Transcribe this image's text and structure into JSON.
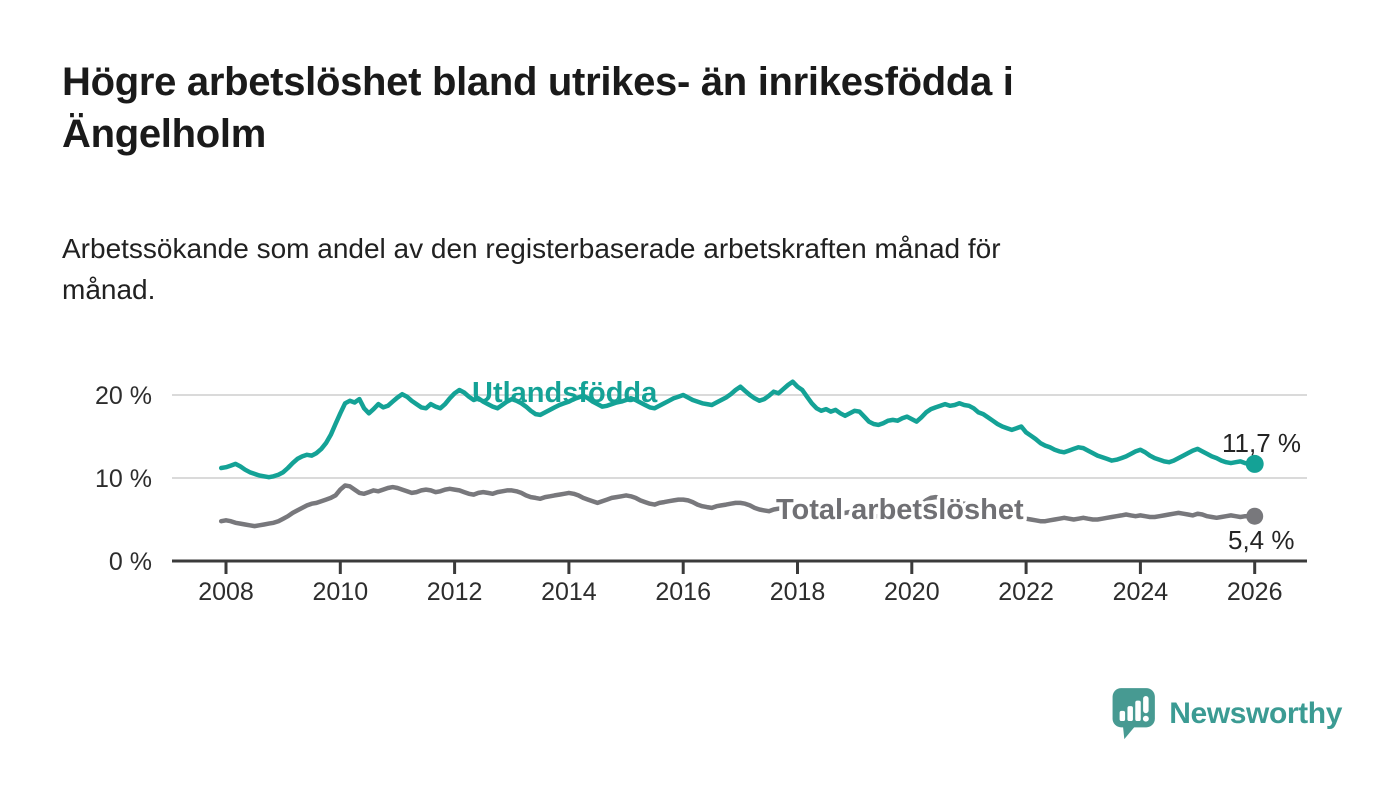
{
  "header": {
    "title_lines": [
      "Högre arbetslöshet bland utrikes- än inrikesfödda i",
      "Ängelholm"
    ],
    "subtitle_lines": [
      "Arbetssökande som andel av den registerbaserade arbetskraften månad för",
      "månad."
    ]
  },
  "chart_data": {
    "type": "line",
    "title": "Högre arbetslöshet bland utrikes- än inrikesfödda i Ängelholm",
    "subtitle": "Arbetssökande som andel av den registerbaserade arbetskraften månad för månad.",
    "x_unit": "year, monthly data points",
    "y_unit": "percent",
    "ylim": [
      0,
      22.5
    ],
    "xlim": [
      2007.9,
      2026.9
    ],
    "grid": "horizontal-only",
    "legend_position": "inline-labels-on-lines",
    "x_ticks": [
      2008,
      2010,
      2012,
      2014,
      2016,
      2018,
      2020,
      2022,
      2024,
      2026
    ],
    "y_ticks": [
      {
        "value": 0,
        "label": "0 %"
      },
      {
        "value": 10,
        "label": "10 %"
      },
      {
        "value": 20,
        "label": "20 %"
      }
    ],
    "series": [
      {
        "name": "Utlandsfödda",
        "color": "#14a296",
        "x_start": 2007.9167,
        "step_months": 1,
        "end_value": 11.7,
        "end_label": "11,7 %",
        "values": [
          11.2,
          11.3,
          11.5,
          11.7,
          11.4,
          11.0,
          10.7,
          10.5,
          10.3,
          10.2,
          10.1,
          10.2,
          10.4,
          10.7,
          11.2,
          11.8,
          12.3,
          12.6,
          12.8,
          12.7,
          13.0,
          13.5,
          14.2,
          15.2,
          16.5,
          17.8,
          19.0,
          19.3,
          19.1,
          19.5,
          18.4,
          17.8,
          18.3,
          18.9,
          18.5,
          18.7,
          19.2,
          19.7,
          20.1,
          19.8,
          19.3,
          18.9,
          18.5,
          18.4,
          18.9,
          18.6,
          18.4,
          18.9,
          19.6,
          20.2,
          20.6,
          20.3,
          19.8,
          19.4,
          19.6,
          19.2,
          18.9,
          18.6,
          18.4,
          18.8,
          19.2,
          19.5,
          19.3,
          19.0,
          18.6,
          18.1,
          17.7,
          17.6,
          17.9,
          18.2,
          18.5,
          18.8,
          19.0,
          19.2,
          19.5,
          19.7,
          19.9,
          19.6,
          19.2,
          18.9,
          18.6,
          18.7,
          18.9,
          19.1,
          19.2,
          19.4,
          19.6,
          19.4,
          19.1,
          18.8,
          18.5,
          18.4,
          18.7,
          19.0,
          19.3,
          19.6,
          19.8,
          20.0,
          19.7,
          19.4,
          19.2,
          19.0,
          18.9,
          18.8,
          19.1,
          19.4,
          19.7,
          20.1,
          20.6,
          21.0,
          20.5,
          20.0,
          19.6,
          19.3,
          19.5,
          19.9,
          20.4,
          20.2,
          20.7,
          21.2,
          21.6,
          21.0,
          20.6,
          19.8,
          19.0,
          18.4,
          18.1,
          18.3,
          18.0,
          18.2,
          17.8,
          17.5,
          17.8,
          18.1,
          18.0,
          17.4,
          16.8,
          16.5,
          16.4,
          16.6,
          16.9,
          17.0,
          16.9,
          17.2,
          17.4,
          17.1,
          16.8,
          17.3,
          17.9,
          18.3,
          18.5,
          18.7,
          18.9,
          18.7,
          18.8,
          19.0,
          18.8,
          18.7,
          18.4,
          17.9,
          17.7,
          17.3,
          16.9,
          16.5,
          16.2,
          16.0,
          15.8,
          16.0,
          16.2,
          15.5,
          15.1,
          14.7,
          14.2,
          13.9,
          13.7,
          13.4,
          13.2,
          13.1,
          13.3,
          13.5,
          13.7,
          13.6,
          13.3,
          13.0,
          12.7,
          12.5,
          12.3,
          12.1,
          12.2,
          12.4,
          12.6,
          12.9,
          13.2,
          13.4,
          13.1,
          12.7,
          12.4,
          12.2,
          12.0,
          11.9,
          12.1,
          12.4,
          12.7,
          13.0,
          13.3,
          13.5,
          13.2,
          12.9,
          12.6,
          12.4,
          12.1,
          11.9,
          11.8,
          11.9,
          12.0,
          11.8,
          11.7,
          11.7
        ]
      },
      {
        "name": "Total arbetslöshet",
        "color": "#78787c",
        "x_start": 2007.9167,
        "step_months": 1,
        "end_value": 5.4,
        "end_label": "5,4 %",
        "values": [
          4.8,
          4.9,
          4.8,
          4.6,
          4.5,
          4.4,
          4.3,
          4.2,
          4.3,
          4.4,
          4.5,
          4.6,
          4.8,
          5.1,
          5.4,
          5.8,
          6.1,
          6.4,
          6.7,
          6.9,
          7.0,
          7.2,
          7.4,
          7.6,
          7.9,
          8.6,
          9.1,
          9.0,
          8.6,
          8.2,
          8.1,
          8.3,
          8.5,
          8.4,
          8.6,
          8.8,
          8.9,
          8.8,
          8.6,
          8.4,
          8.2,
          8.3,
          8.5,
          8.6,
          8.5,
          8.3,
          8.4,
          8.6,
          8.7,
          8.6,
          8.5,
          8.3,
          8.1,
          8.0,
          8.2,
          8.3,
          8.2,
          8.1,
          8.3,
          8.4,
          8.5,
          8.5,
          8.4,
          8.2,
          7.9,
          7.7,
          7.6,
          7.5,
          7.7,
          7.8,
          7.9,
          8.0,
          8.1,
          8.2,
          8.1,
          7.9,
          7.6,
          7.4,
          7.2,
          7.0,
          7.2,
          7.4,
          7.6,
          7.7,
          7.8,
          7.9,
          7.8,
          7.6,
          7.3,
          7.1,
          6.9,
          6.8,
          7.0,
          7.1,
          7.2,
          7.3,
          7.4,
          7.4,
          7.3,
          7.1,
          6.8,
          6.6,
          6.5,
          6.4,
          6.6,
          6.7,
          6.8,
          6.9,
          7.0,
          7.0,
          6.9,
          6.7,
          6.4,
          6.2,
          6.1,
          6.0,
          6.2,
          6.3,
          6.4,
          6.4,
          6.5,
          6.5,
          6.4,
          6.2,
          5.9,
          5.7,
          5.6,
          5.5,
          5.6,
          5.7,
          5.7,
          5.8,
          5.9,
          5.9,
          5.8,
          5.7,
          5.5,
          5.4,
          5.4,
          5.5,
          5.6,
          5.7,
          5.8,
          5.9,
          6.0,
          6.1,
          6.2,
          6.8,
          7.3,
          7.6,
          7.7,
          7.6,
          7.5,
          7.3,
          7.2,
          7.0,
          6.9,
          6.8,
          6.7,
          6.5,
          6.3,
          6.1,
          5.9,
          5.7,
          5.6,
          5.4,
          5.3,
          5.2,
          5.2,
          5.1,
          5.0,
          4.9,
          4.8,
          4.8,
          4.9,
          5.0,
          5.1,
          5.2,
          5.1,
          5.0,
          5.1,
          5.2,
          5.1,
          5.0,
          5.0,
          5.1,
          5.2,
          5.3,
          5.4,
          5.5,
          5.6,
          5.5,
          5.4,
          5.5,
          5.4,
          5.3,
          5.3,
          5.4,
          5.5,
          5.6,
          5.7,
          5.8,
          5.7,
          5.6,
          5.5,
          5.7,
          5.6,
          5.4,
          5.3,
          5.2,
          5.3,
          5.4,
          5.5,
          5.4,
          5.3,
          5.4,
          5.4,
          5.4
        ]
      }
    ]
  },
  "footer": {
    "brand": "Newsworthy",
    "brand_color": "#3b9b93",
    "icon": "newsworthy-speech-bubble-barchart-icon"
  }
}
